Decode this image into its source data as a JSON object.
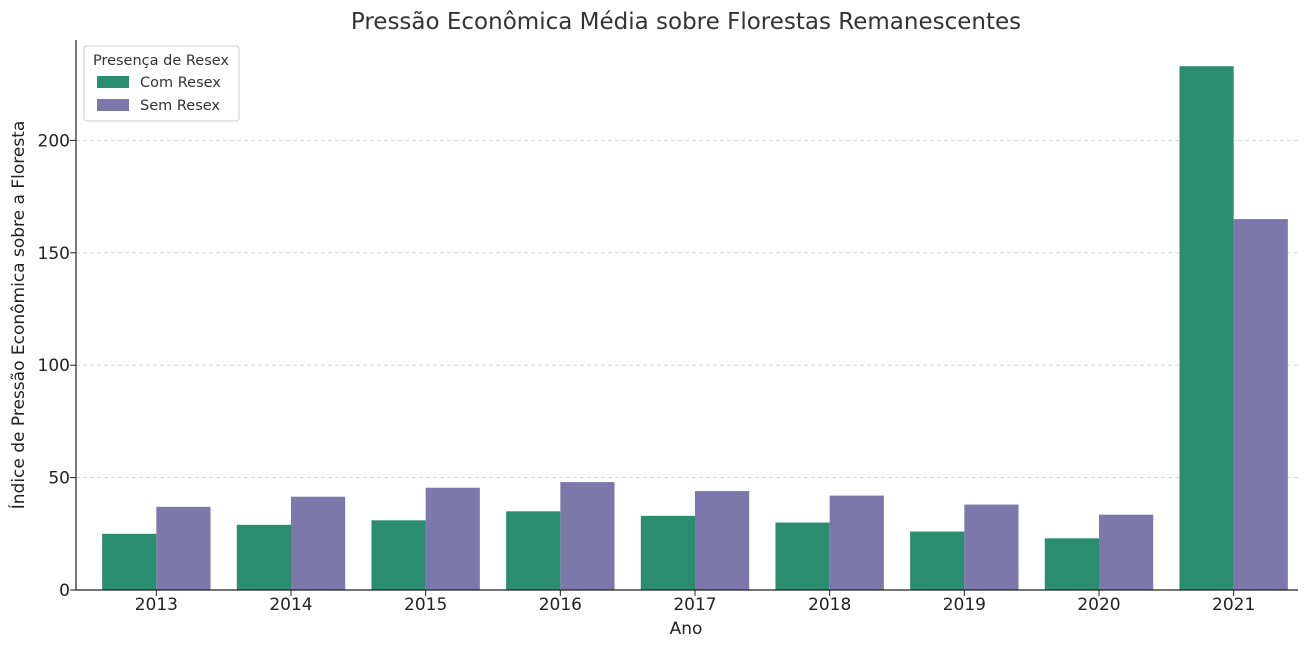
{
  "chart_data": {
    "type": "bar",
    "title": "Pressão Econômica Média sobre Florestas Remanescentes",
    "xlabel": "Ano",
    "ylabel": "Índice de Pressão Econômica sobre a Floresta",
    "categories": [
      "2013",
      "2014",
      "2015",
      "2016",
      "2017",
      "2018",
      "2019",
      "2020",
      "2021"
    ],
    "series": [
      {
        "name": "Com Resex",
        "color": "#2a8d6f",
        "values": [
          25,
          29,
          31,
          35,
          33,
          30,
          26,
          23,
          233
        ]
      },
      {
        "name": "Sem Resex",
        "color": "#7d78ab",
        "values": [
          37,
          41.5,
          45.5,
          48,
          44,
          42,
          38,
          33.5,
          165
        ]
      }
    ],
    "ylim": [
      0,
      245
    ],
    "yticks": [
      0,
      50,
      100,
      150,
      200
    ],
    "grid": "y-dashed",
    "legend": {
      "title": "Presença de Resex",
      "position": "top-left"
    }
  }
}
